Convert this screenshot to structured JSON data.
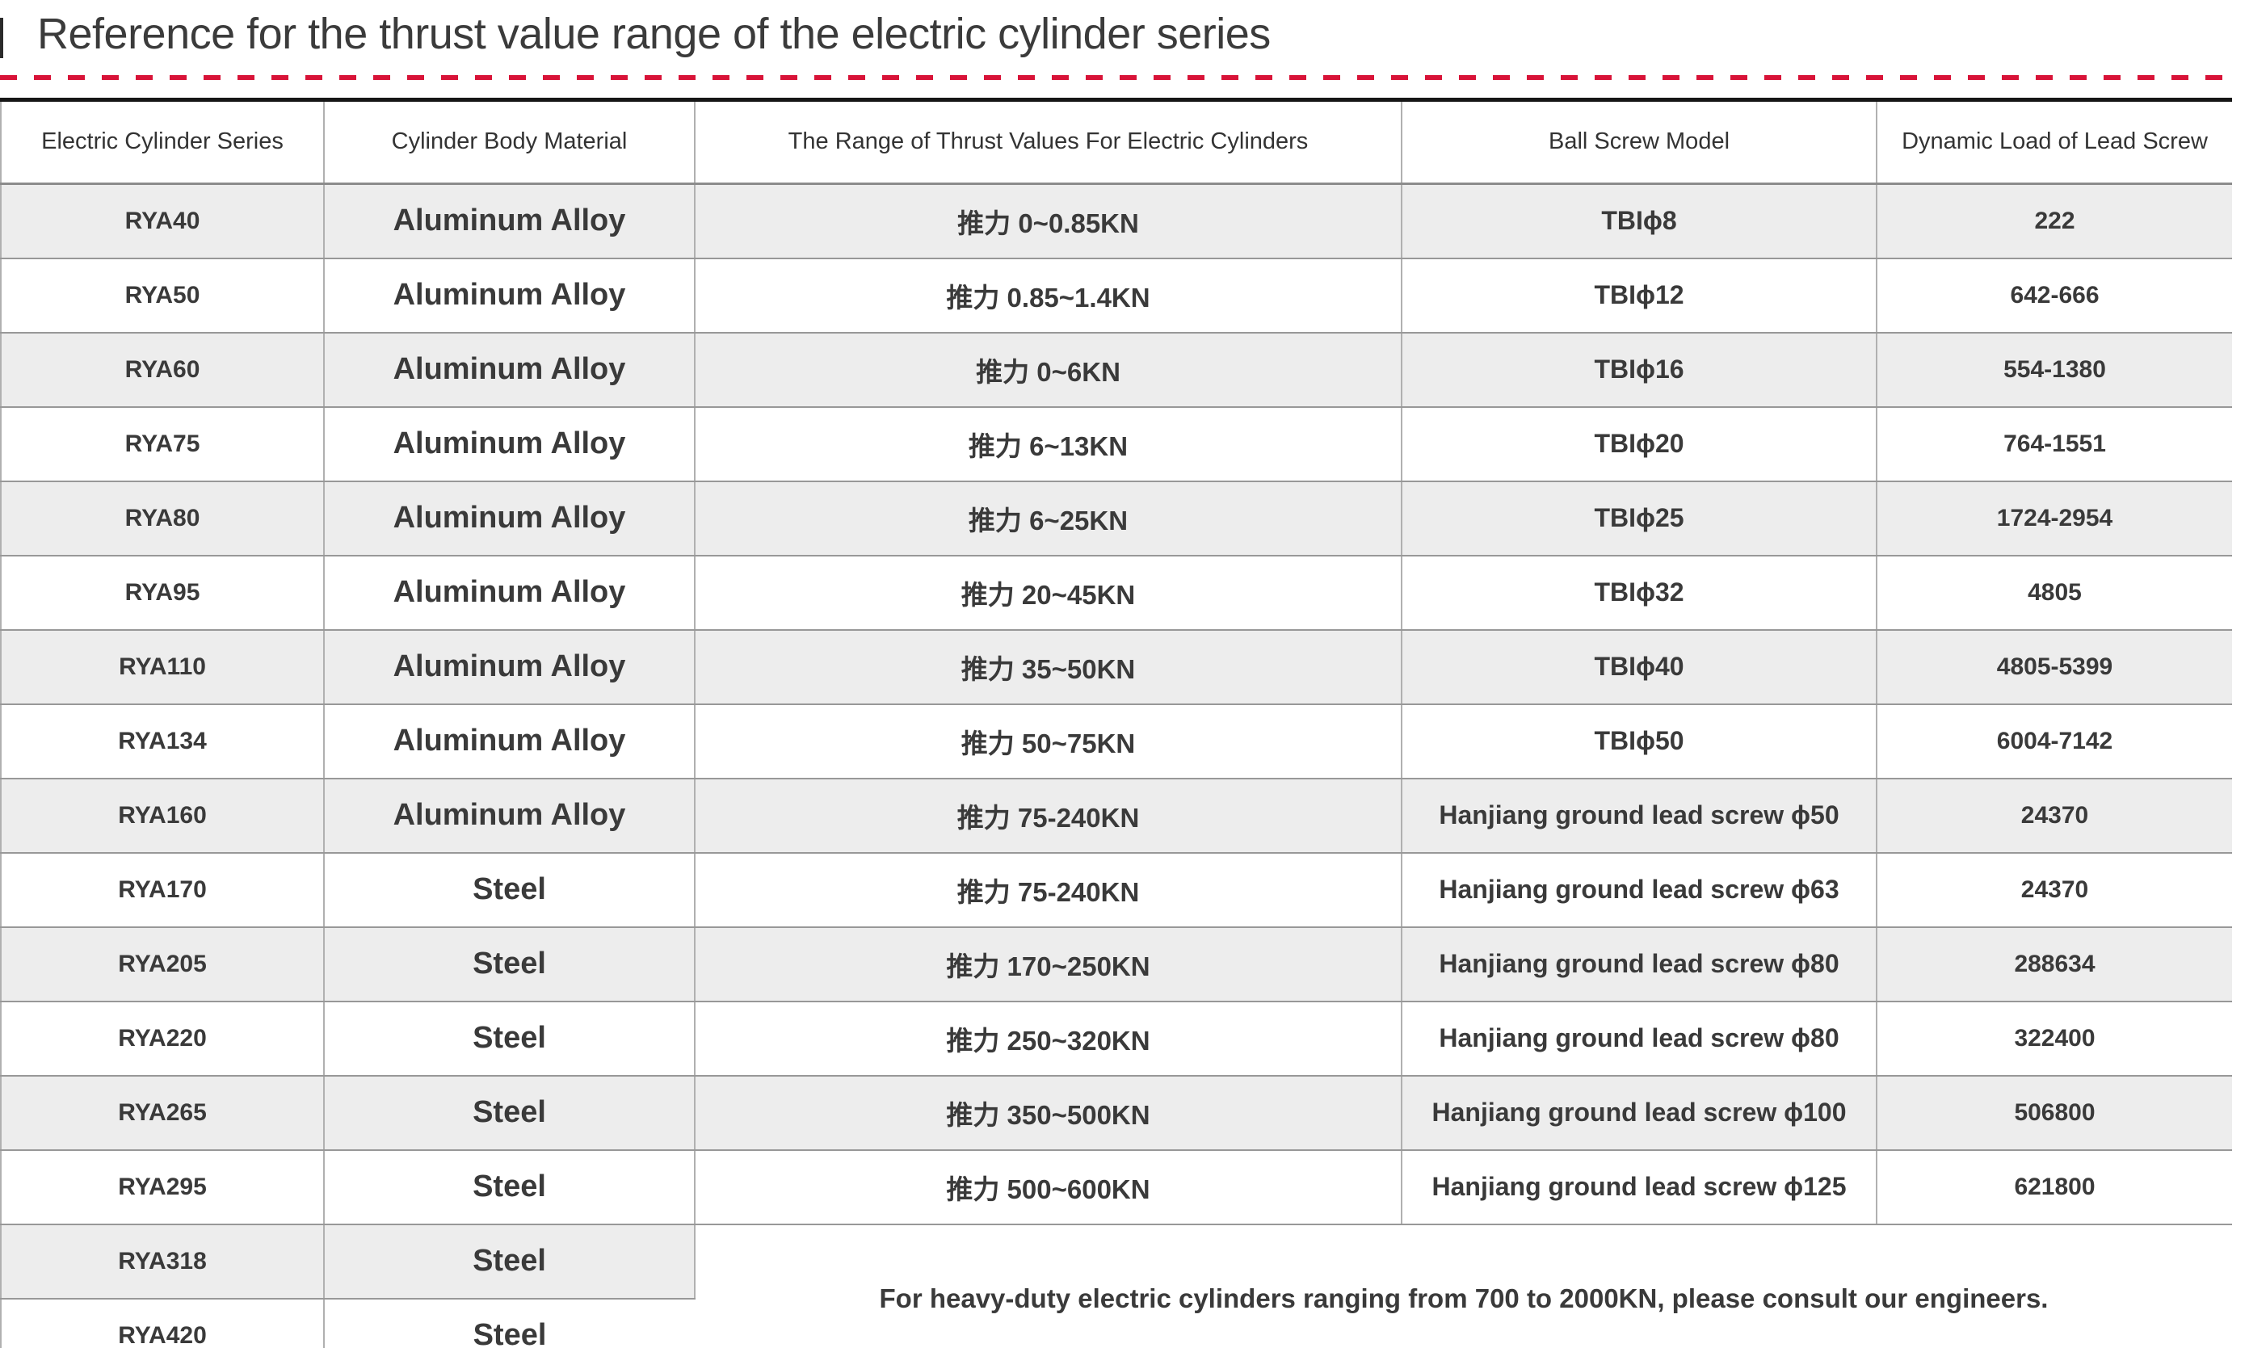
{
  "page": {
    "title": "Reference for the thrust value range of the electric cylinder series"
  },
  "style": {
    "divider_red": "#d81338",
    "stripe_gray": "#ededed",
    "table_top_border": "#161616"
  },
  "table": {
    "headers": [
      "Electric Cylinder Series",
      "Cylinder Body Material",
      "The Range of Thrust Values For Electric Cylinders",
      "Ball Screw Model",
      "Dynamic Load of Lead Screw"
    ],
    "rows": [
      {
        "series": "RYA40",
        "material": "Aluminum Alloy",
        "thrust": "推力 0~0.85KN",
        "screw": "TBIϕ8",
        "load": "222"
      },
      {
        "series": "RYA50",
        "material": "Aluminum Alloy",
        "thrust": "推力 0.85~1.4KN",
        "screw": "TBIϕ12",
        "load": "642-666"
      },
      {
        "series": "RYA60",
        "material": "Aluminum Alloy",
        "thrust": "推力 0~6KN",
        "screw": "TBIϕ16",
        "load": "554-1380"
      },
      {
        "series": "RYA75",
        "material": "Aluminum Alloy",
        "thrust": "推力 6~13KN",
        "screw": "TBIϕ20",
        "load": "764-1551"
      },
      {
        "series": "RYA80",
        "material": "Aluminum Alloy",
        "thrust": "推力 6~25KN",
        "screw": "TBIϕ25",
        "load": "1724-2954"
      },
      {
        "series": "RYA95",
        "material": "Aluminum Alloy",
        "thrust": "推力 20~45KN",
        "screw": "TBIϕ32",
        "load": "4805"
      },
      {
        "series": "RYA110",
        "material": "Aluminum Alloy",
        "thrust": "推力 35~50KN",
        "screw": "TBIϕ40",
        "load": "4805-5399"
      },
      {
        "series": "RYA134",
        "material": "Aluminum Alloy",
        "thrust": "推力 50~75KN",
        "screw": "TBIϕ50",
        "load": "6004-7142"
      },
      {
        "series": "RYA160",
        "material": "Aluminum Alloy",
        "thrust": "推力 75-240KN",
        "screw": "Hanjiang ground lead screw ϕ50",
        "load": "24370"
      },
      {
        "series": "RYA170",
        "material": "Steel",
        "thrust": "推力 75-240KN",
        "screw": "Hanjiang ground lead screw ϕ63",
        "load": "24370"
      },
      {
        "series": "RYA205",
        "material": "Steel",
        "thrust": "推力 170~250KN",
        "screw": "Hanjiang ground lead screw ϕ80",
        "load": "288634"
      },
      {
        "series": "RYA220",
        "material": "Steel",
        "thrust": "推力 250~320KN",
        "screw": "Hanjiang ground lead screw ϕ80",
        "load": "322400"
      },
      {
        "series": "RYA265",
        "material": "Steel",
        "thrust": "推力 350~500KN",
        "screw": "Hanjiang ground lead screw ϕ100",
        "load": "506800"
      },
      {
        "series": "RYA295",
        "material": "Steel",
        "thrust": "推力 500~600KN",
        "screw": "Hanjiang ground lead screw ϕ125",
        "load": "621800"
      }
    ],
    "footer_rows": [
      {
        "series": "RYA318",
        "material": "Steel"
      },
      {
        "series": "RYA420",
        "material": "Steel"
      }
    ],
    "note": "For heavy-duty electric cylinders ranging from 700 to 2000KN, please consult our engineers."
  }
}
